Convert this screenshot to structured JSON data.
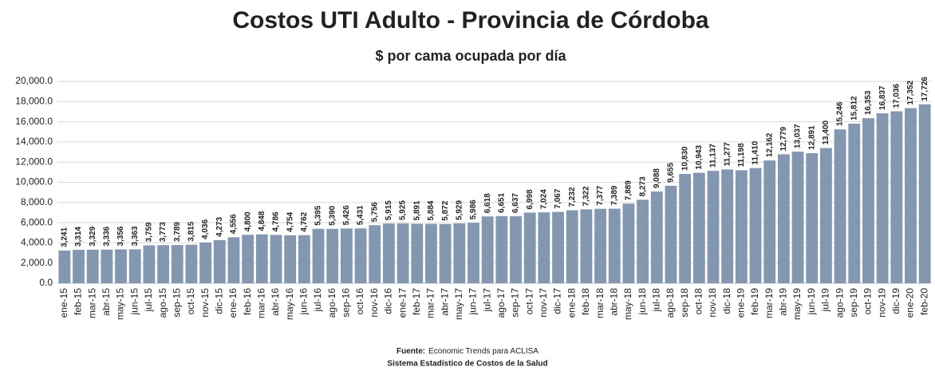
{
  "chart_data": {
    "type": "bar",
    "title": "Costos UTI Adulto - Provincia de Córdoba",
    "subtitle": "$ por cama ocupada por día",
    "categories": [
      "ene-15",
      "feb-15",
      "mar-15",
      "abr-15",
      "may-15",
      "jun-15",
      "jul-15",
      "ago-15",
      "sep-15",
      "oct-15",
      "nov-15",
      "dic-15",
      "ene-16",
      "feb-16",
      "mar-16",
      "abr-16",
      "may-16",
      "jun-16",
      "jul-16",
      "ago-16",
      "sep-16",
      "oct-16",
      "nov-16",
      "dic-16",
      "ene-17",
      "feb-17",
      "mar-17",
      "abr-17",
      "may-17",
      "jun-17",
      "jul-17",
      "ago-17",
      "sep-17",
      "oct-17",
      "nov-17",
      "dic-17",
      "ene-18",
      "feb-18",
      "mar-18",
      "abr-18",
      "may-18",
      "jun-18",
      "jul-18",
      "ago-18",
      "sep-18",
      "oct-18",
      "nov-18",
      "dic-18",
      "ene-19",
      "feb-19",
      "mar-19",
      "abr-19",
      "may-19",
      "jun-19",
      "jul-19",
      "ago-19",
      "sep-19",
      "oct-19",
      "nov-19",
      "dic-19",
      "ene-20",
      "feb-20"
    ],
    "values": [
      3241,
      3314,
      3329,
      3336,
      3356,
      3363,
      3759,
      3773,
      3789,
      3815,
      4036,
      4273,
      4556,
      4800,
      4848,
      4786,
      4754,
      4762,
      5395,
      5390,
      5426,
      5431,
      5756,
      5915,
      5925,
      5891,
      5884,
      5872,
      5929,
      5986,
      6618,
      6651,
      6637,
      6998,
      7024,
      7067,
      7232,
      7322,
      7377,
      7389,
      7889,
      8273,
      9088,
      9655,
      10830,
      10943,
      11137,
      11277,
      11198,
      11410,
      12162,
      12779,
      13037,
      12891,
      13400,
      15246,
      15812,
      16353,
      16837,
      17036,
      17352,
      17726
    ],
    "value_labels": [
      "3,241",
      "3,314",
      "3,329",
      "3,336",
      "3,356",
      "3,363",
      "3,759",
      "3,773",
      "3,789",
      "3,815",
      "4,036",
      "4,273",
      "4,556",
      "4,800",
      "4,848",
      "4,786",
      "4,754",
      "4,762",
      "5,395",
      "5,390",
      "5,426",
      "5,431",
      "5,756",
      "5,915",
      "5,925",
      "5,891",
      "5,884",
      "5,872",
      "5,929",
      "5,986",
      "6,618",
      "6,651",
      "6,637",
      "6,998",
      "7,024",
      "7,067",
      "7,232",
      "7,322",
      "7,377",
      "7,389",
      "7,889",
      "8,273",
      "9,088",
      "9,655",
      "10,830",
      "10,943",
      "11,137",
      "11,277",
      "11,198",
      "11,410",
      "12,162",
      "12,779",
      "13,037",
      "12,891",
      "13,400",
      "15,246",
      "15,812",
      "16,353",
      "16,837",
      "17,036",
      "17,352",
      "17,726"
    ],
    "color": "#8497b0",
    "ylim": [
      0,
      20000
    ],
    "yticks": [
      {
        "value": 0,
        "label": "0.0"
      },
      {
        "value": 2000,
        "label": "2,000.0"
      },
      {
        "value": 4000,
        "label": "4,000.0"
      },
      {
        "value": 6000,
        "label": "6,000.0"
      },
      {
        "value": 8000,
        "label": "8,000.0"
      },
      {
        "value": 10000,
        "label": "10,000.0"
      },
      {
        "value": 12000,
        "label": "12,000.0"
      },
      {
        "value": 14000,
        "label": "14,000.0"
      },
      {
        "value": 16000,
        "label": "16,000.0"
      },
      {
        "value": 18000,
        "label": "18,000.0"
      },
      {
        "value": 20000,
        "label": "20,000.0"
      }
    ],
    "grid": true,
    "source_label": "Fuente:",
    "source": "Economic Trends para ACLISA",
    "footer": "Sistema Estadístico de Costos de la Salud"
  }
}
